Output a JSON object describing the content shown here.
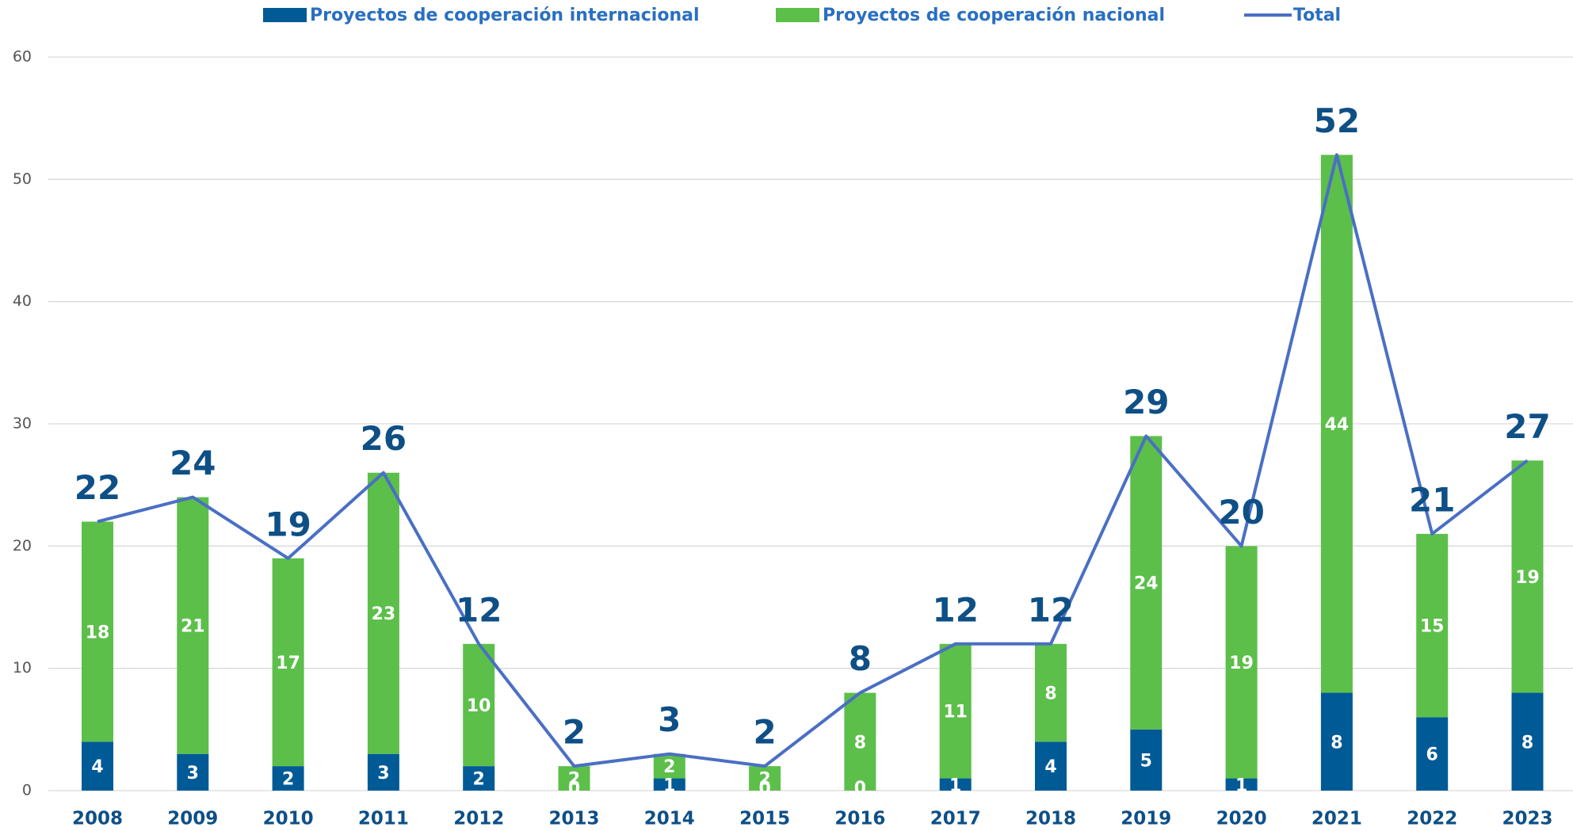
{
  "chart_data": {
    "type": "bar",
    "stacked": true,
    "categories": [
      "2008",
      "2009",
      "2010",
      "2011",
      "2012",
      "2013",
      "2014",
      "2015",
      "2016",
      "2017",
      "2018",
      "2019",
      "2020",
      "2021",
      "2022",
      "2023"
    ],
    "series": [
      {
        "name": "Proyectos de cooperación internacional",
        "color": "#005a96",
        "values": [
          4,
          3,
          2,
          3,
          2,
          0,
          1,
          0,
          0,
          1,
          4,
          5,
          1,
          8,
          6,
          8
        ]
      },
      {
        "name": "Proyectos de cooperación nacional",
        "color": "#5cbf4a",
        "values": [
          18,
          21,
          17,
          23,
          10,
          2,
          2,
          2,
          8,
          11,
          8,
          24,
          19,
          44,
          15,
          19
        ]
      },
      {
        "name": "Total",
        "color": "#4a6fc4",
        "type": "line",
        "values": [
          22,
          24,
          19,
          26,
          12,
          2,
          3,
          2,
          8,
          12,
          12,
          29,
          20,
          52,
          21,
          27
        ]
      }
    ],
    "ylim": [
      0,
      60
    ],
    "yticks": [
      0,
      10,
      20,
      30,
      40,
      50,
      60
    ],
    "grid": true,
    "legend": "top"
  }
}
